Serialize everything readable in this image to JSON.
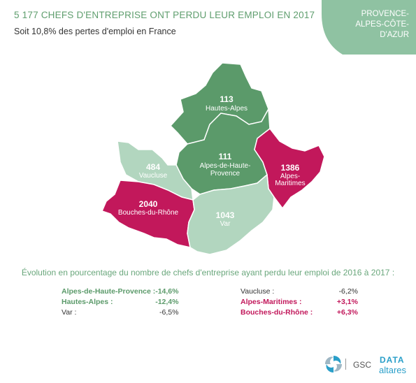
{
  "header": {
    "title": "5 177 CHEFS D'ENTREPRISE ONT PERDU LEUR EMPLOI EN 2017",
    "subtitle": "Soit 10,8% des pertes d'emploi en France"
  },
  "region": {
    "lines": [
      "PROVENCE-",
      "ALPES-CÔTE-",
      "D'AZUR"
    ],
    "color": "#8fc2a2"
  },
  "colors": {
    "dark_green": "#5b9a6a",
    "light_green": "#b2d6bf",
    "crimson": "#c2185b"
  },
  "map": {
    "departments": [
      {
        "id": "hautes-alpes",
        "value": "113",
        "name": [
          "Hautes-Alpes"
        ],
        "color": "dark_green"
      },
      {
        "id": "alpes-de-haute-provence",
        "value": "111",
        "name": [
          "Alpes-de-Haute-",
          "Provence"
        ],
        "color": "dark_green"
      },
      {
        "id": "vaucluse",
        "value": "484",
        "name": [
          "Vaucluse"
        ],
        "color": "light_green"
      },
      {
        "id": "alpes-maritimes",
        "value": "1386",
        "name": [
          "Alpes-",
          "Maritimes"
        ],
        "color": "crimson"
      },
      {
        "id": "bouches-du-rhone",
        "value": "2040",
        "name": [
          "Bouches-du-Rhône"
        ],
        "color": "crimson"
      },
      {
        "id": "var",
        "value": "1043",
        "name": [
          "Var"
        ],
        "color": "light_green"
      }
    ]
  },
  "evolution": {
    "title": "Évolution en pourcentage du nombre de chefs d'entreprise ayant perdu leur emploi de 2016 à 2017 :",
    "left": [
      {
        "name": "Alpes-de-Haute-Provence :",
        "value": "-14,6%",
        "style": "g"
      },
      {
        "name": "Hautes-Alpes :",
        "value": "-12,4%",
        "style": "g"
      },
      {
        "name": "Var :",
        "value": "-6,5%",
        "style": "n"
      }
    ],
    "right": [
      {
        "name": "Vaucluse :",
        "value": "-6,2%",
        "style": "n"
      },
      {
        "name": "Alpes-Maritimes :",
        "value": "+3,1%",
        "style": "r"
      },
      {
        "name": "Bouches-du-Rhône :",
        "value": "+6,3%",
        "style": "r"
      }
    ]
  },
  "footer": {
    "gsc": "GSC",
    "data": "DATA",
    "altares": "altares"
  }
}
